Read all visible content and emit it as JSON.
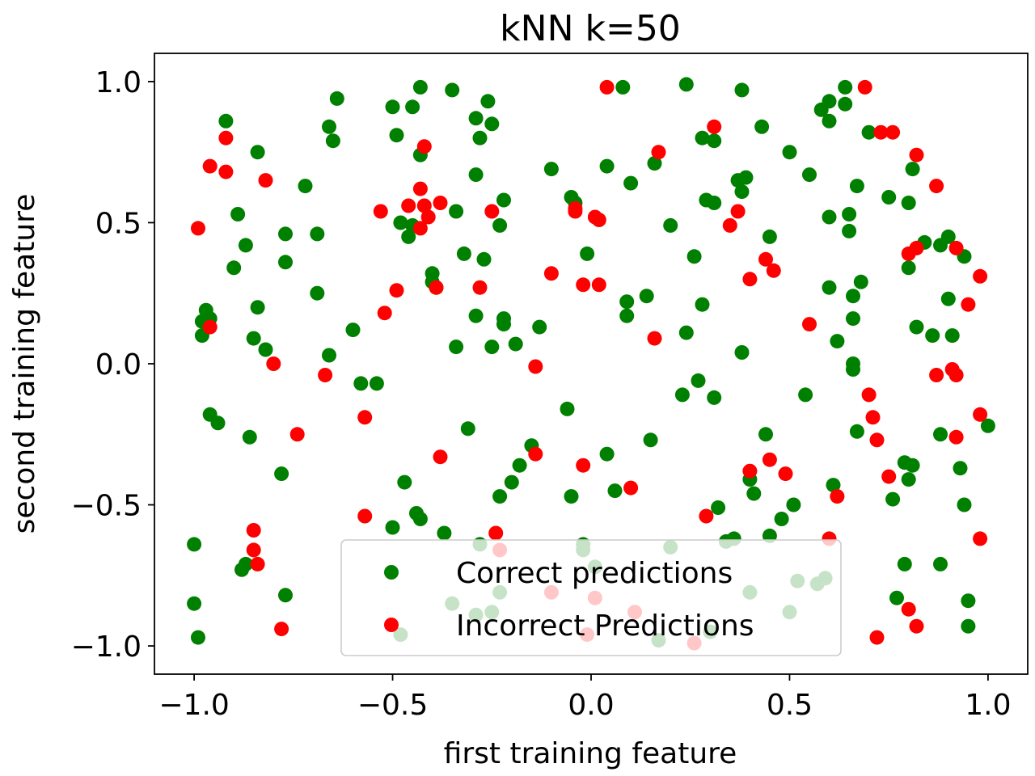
{
  "chart_data": {
    "type": "scatter",
    "title": "kNN k=50",
    "xlabel": "first training feature",
    "ylabel": "second training feature",
    "xlim": [
      -1.1,
      1.1
    ],
    "ylim": [
      -1.1,
      1.1
    ],
    "xticks": [
      -1.0,
      -0.5,
      0.0,
      0.5,
      1.0
    ],
    "yticks": [
      -1.0,
      -0.5,
      0.0,
      0.5,
      1.0
    ],
    "xtick_labels": [
      "−1.0",
      "−0.5",
      "0.0",
      "0.5",
      "1.0"
    ],
    "ytick_labels": [
      "−1.0",
      "−0.5",
      "0.0",
      "0.5",
      "1.0"
    ],
    "grid": false,
    "legend": {
      "position": "lower-right"
    },
    "series": [
      {
        "name": "Correct predictions",
        "color": "#008000",
        "points": [
          [
            -0.92,
            0.86
          ],
          [
            -0.64,
            0.94
          ],
          [
            -0.5,
            0.91
          ],
          [
            -0.45,
            0.91
          ],
          [
            -0.43,
            0.98
          ],
          [
            -0.35,
            0.97
          ],
          [
            -0.26,
            0.93
          ],
          [
            -0.29,
            0.87
          ],
          [
            -0.25,
            0.85
          ],
          [
            -0.49,
            0.81
          ],
          [
            -0.66,
            0.84
          ],
          [
            -0.65,
            0.79
          ],
          [
            -0.84,
            0.75
          ],
          [
            -0.43,
            0.74
          ],
          [
            -0.72,
            0.63
          ],
          [
            -0.28,
            0.8
          ],
          [
            -0.29,
            0.67
          ],
          [
            -0.89,
            0.53
          ],
          [
            -0.48,
            0.5
          ],
          [
            -0.46,
            0.45
          ],
          [
            -0.45,
            0.49
          ],
          [
            -0.34,
            0.54
          ],
          [
            -0.22,
            0.58
          ],
          [
            -0.23,
            0.49
          ],
          [
            -0.77,
            0.46
          ],
          [
            -0.69,
            0.46
          ],
          [
            -0.87,
            0.42
          ],
          [
            -0.9,
            0.34
          ],
          [
            -0.77,
            0.36
          ],
          [
            -0.32,
            0.39
          ],
          [
            -0.27,
            0.37
          ],
          [
            -0.4,
            0.32
          ],
          [
            -0.4,
            0.29
          ],
          [
            -0.39,
            0.27
          ],
          [
            -0.69,
            0.25
          ],
          [
            -0.97,
            0.19
          ],
          [
            -0.98,
            0.15
          ],
          [
            -0.96,
            0.16
          ],
          [
            -0.98,
            0.1
          ],
          [
            -0.84,
            0.2
          ],
          [
            -0.29,
            0.17
          ],
          [
            -0.22,
            0.16
          ],
          [
            -0.22,
            0.14
          ],
          [
            -0.13,
            0.13
          ],
          [
            -0.85,
            0.09
          ],
          [
            -0.82,
            0.05
          ],
          [
            -0.6,
            0.12
          ],
          [
            -0.66,
            0.03
          ],
          [
            -0.34,
            0.06
          ],
          [
            -0.25,
            0.06
          ],
          [
            -0.19,
            0.07
          ],
          [
            -0.58,
            -0.07
          ],
          [
            -0.54,
            -0.07
          ],
          [
            -0.96,
            -0.18
          ],
          [
            -0.94,
            -0.21
          ],
          [
            -0.86,
            -0.26
          ],
          [
            -0.31,
            -0.23
          ],
          [
            -0.06,
            -0.16
          ],
          [
            -0.15,
            -0.29
          ],
          [
            -0.18,
            -0.36
          ],
          [
            -0.2,
            -0.42
          ],
          [
            -0.47,
            -0.42
          ],
          [
            -0.78,
            -0.39
          ],
          [
            -0.23,
            -0.47
          ],
          [
            -0.05,
            -0.47
          ],
          [
            -0.44,
            -0.53
          ],
          [
            -0.43,
            -0.55
          ],
          [
            -0.5,
            -0.58
          ],
          [
            -0.37,
            -0.6
          ],
          [
            -0.28,
            -0.64
          ],
          [
            -1.0,
            -0.64
          ],
          [
            -0.87,
            -0.71
          ],
          [
            -0.88,
            -0.73
          ],
          [
            -0.77,
            -0.82
          ],
          [
            -1.0,
            -0.85
          ],
          [
            -0.99,
            -0.97
          ],
          [
            -0.48,
            -0.96
          ],
          [
            -0.35,
            -0.85
          ],
          [
            -0.29,
            -0.89
          ],
          [
            -0.25,
            -0.88
          ],
          [
            -0.23,
            -0.81
          ],
          [
            -0.02,
            -0.66
          ],
          [
            -0.02,
            -0.64
          ],
          [
            0.01,
            -0.72
          ],
          [
            0.04,
            -0.32
          ],
          [
            0.06,
            -0.45
          ],
          [
            0.15,
            -0.27
          ],
          [
            0.2,
            -0.65
          ],
          [
            0.17,
            -0.98
          ],
          [
            0.3,
            -0.95
          ],
          [
            0.32,
            -0.51
          ],
          [
            0.34,
            -0.63
          ],
          [
            0.36,
            -0.62
          ],
          [
            0.4,
            -0.41
          ],
          [
            0.4,
            -0.81
          ],
          [
            0.41,
            -0.46
          ],
          [
            0.44,
            -0.25
          ],
          [
            0.45,
            -0.61
          ],
          [
            0.48,
            -0.55
          ],
          [
            0.51,
            -0.5
          ],
          [
            0.5,
            -0.88
          ],
          [
            0.52,
            -0.77
          ],
          [
            0.57,
            -0.78
          ],
          [
            0.59,
            -0.76
          ],
          [
            0.61,
            -0.43
          ],
          [
            0.23,
            -0.11
          ],
          [
            0.27,
            -0.06
          ],
          [
            0.31,
            -0.12
          ],
          [
            0.24,
            0.11
          ],
          [
            0.28,
            0.21
          ],
          [
            0.38,
            0.04
          ],
          [
            0.54,
            -0.11
          ],
          [
            0.09,
            0.22
          ],
          [
            0.09,
            0.17
          ],
          [
            0.14,
            0.24
          ],
          [
            0.26,
            0.38
          ],
          [
            0.2,
            0.49
          ],
          [
            -0.01,
            0.39
          ],
          [
            0.08,
            0.98
          ],
          [
            0.24,
            0.99
          ],
          [
            0.38,
            0.97
          ],
          [
            0.43,
            0.84
          ],
          [
            0.28,
            0.8
          ],
          [
            0.31,
            0.79
          ],
          [
            0.04,
            0.7
          ],
          [
            0.1,
            0.64
          ],
          [
            0.16,
            0.71
          ],
          [
            -0.1,
            0.69
          ],
          [
            -0.05,
            0.59
          ],
          [
            -0.04,
            0.57
          ],
          [
            0.29,
            0.58
          ],
          [
            0.31,
            0.57
          ],
          [
            0.37,
            0.65
          ],
          [
            0.39,
            0.66
          ],
          [
            0.38,
            0.61
          ],
          [
            0.45,
            0.45
          ],
          [
            0.5,
            0.75
          ],
          [
            0.55,
            0.67
          ],
          [
            0.58,
            0.9
          ],
          [
            0.6,
            0.93
          ],
          [
            0.6,
            0.86
          ],
          [
            0.64,
            0.98
          ],
          [
            0.64,
            0.92
          ],
          [
            0.7,
            0.82
          ],
          [
            0.75,
            0.59
          ],
          [
            0.8,
            0.57
          ],
          [
            0.81,
            0.69
          ],
          [
            0.67,
            0.63
          ],
          [
            0.6,
            0.52
          ],
          [
            0.65,
            0.53
          ],
          [
            0.65,
            0.47
          ],
          [
            0.6,
            0.27
          ],
          [
            0.66,
            0.24
          ],
          [
            0.68,
            0.29
          ],
          [
            0.66,
            0.16
          ],
          [
            0.62,
            0.08
          ],
          [
            0.66,
            0.0
          ],
          [
            0.66,
            -0.02
          ],
          [
            0.67,
            -0.24
          ],
          [
            0.8,
            0.34
          ],
          [
            0.82,
            0.13
          ],
          [
            0.84,
            0.43
          ],
          [
            0.86,
            0.1
          ],
          [
            0.88,
            0.42
          ],
          [
            0.9,
            0.45
          ],
          [
            0.9,
            0.23
          ],
          [
            0.91,
            0.1
          ],
          [
            0.94,
            0.38
          ],
          [
            0.88,
            -0.25
          ],
          [
            0.93,
            -0.37
          ],
          [
            0.94,
            -0.5
          ],
          [
            1.0,
            -0.22
          ],
          [
            0.79,
            -0.35
          ],
          [
            0.81,
            -0.36
          ],
          [
            0.8,
            -0.41
          ],
          [
            0.76,
            -0.48
          ],
          [
            0.79,
            -0.71
          ],
          [
            0.77,
            -0.83
          ],
          [
            0.88,
            -0.71
          ],
          [
            0.95,
            -0.84
          ],
          [
            0.95,
            -0.93
          ]
        ]
      },
      {
        "name": "Incorrect Predictions",
        "color": "#ff0000",
        "points": [
          [
            -0.92,
            0.8
          ],
          [
            -0.96,
            0.7
          ],
          [
            -0.92,
            0.68
          ],
          [
            -0.82,
            0.65
          ],
          [
            -0.99,
            0.48
          ],
          [
            -0.42,
            0.77
          ],
          [
            -0.43,
            0.62
          ],
          [
            -0.46,
            0.56
          ],
          [
            -0.42,
            0.56
          ],
          [
            -0.41,
            0.52
          ],
          [
            -0.43,
            0.48
          ],
          [
            -0.38,
            0.57
          ],
          [
            -0.53,
            0.54
          ],
          [
            -0.25,
            0.54
          ],
          [
            -0.49,
            0.26
          ],
          [
            -0.52,
            0.18
          ],
          [
            -0.39,
            0.27
          ],
          [
            -0.28,
            0.27
          ],
          [
            -0.1,
            0.32
          ],
          [
            -0.96,
            0.13
          ],
          [
            -0.8,
            0.0
          ],
          [
            -0.67,
            -0.04
          ],
          [
            -0.57,
            -0.19
          ],
          [
            -0.74,
            -0.25
          ],
          [
            -0.38,
            -0.33
          ],
          [
            -0.14,
            -0.01
          ],
          [
            -0.14,
            -0.32
          ],
          [
            -0.02,
            -0.36
          ],
          [
            0.1,
            -0.44
          ],
          [
            -0.57,
            -0.54
          ],
          [
            -0.85,
            -0.59
          ],
          [
            -0.85,
            -0.66
          ],
          [
            -0.84,
            -0.71
          ],
          [
            -0.78,
            -0.94
          ],
          [
            -0.24,
            -0.6
          ],
          [
            -0.23,
            -0.66
          ],
          [
            -0.1,
            -0.81
          ],
          [
            0.01,
            -0.83
          ],
          [
            -0.01,
            -0.96
          ],
          [
            0.11,
            -0.88
          ],
          [
            0.26,
            -0.99
          ],
          [
            0.29,
            -0.54
          ],
          [
            0.4,
            -0.38
          ],
          [
            0.45,
            -0.34
          ],
          [
            0.49,
            -0.39
          ],
          [
            0.6,
            -0.62
          ],
          [
            0.62,
            -0.47
          ],
          [
            0.7,
            -0.11
          ],
          [
            0.71,
            -0.19
          ],
          [
            0.72,
            -0.27
          ],
          [
            0.75,
            -0.4
          ],
          [
            0.72,
            -0.97
          ],
          [
            0.8,
            -0.87
          ],
          [
            0.82,
            -0.93
          ],
          [
            0.04,
            0.98
          ],
          [
            0.17,
            0.75
          ],
          [
            0.31,
            0.84
          ],
          [
            0.69,
            0.98
          ],
          [
            0.73,
            0.82
          ],
          [
            0.76,
            0.82
          ],
          [
            0.82,
            0.74
          ],
          [
            0.87,
            0.63
          ],
          [
            0.8,
            0.39
          ],
          [
            0.82,
            0.41
          ],
          [
            0.92,
            0.41
          ],
          [
            0.98,
            0.31
          ],
          [
            0.95,
            0.21
          ],
          [
            0.91,
            -0.02
          ],
          [
            0.92,
            -0.04
          ],
          [
            0.87,
            -0.04
          ],
          [
            0.98,
            -0.18
          ],
          [
            0.92,
            -0.26
          ],
          [
            0.98,
            -0.62
          ],
          [
            -0.04,
            0.55
          ],
          [
            -0.04,
            0.54
          ],
          [
            0.01,
            0.52
          ],
          [
            0.02,
            0.51
          ],
          [
            -0.02,
            0.28
          ],
          [
            0.02,
            0.28
          ],
          [
            0.16,
            0.09
          ],
          [
            0.35,
            0.49
          ],
          [
            0.37,
            0.54
          ],
          [
            0.4,
            0.3
          ],
          [
            0.44,
            0.37
          ],
          [
            0.46,
            0.33
          ],
          [
            0.55,
            0.14
          ]
        ]
      }
    ]
  }
}
